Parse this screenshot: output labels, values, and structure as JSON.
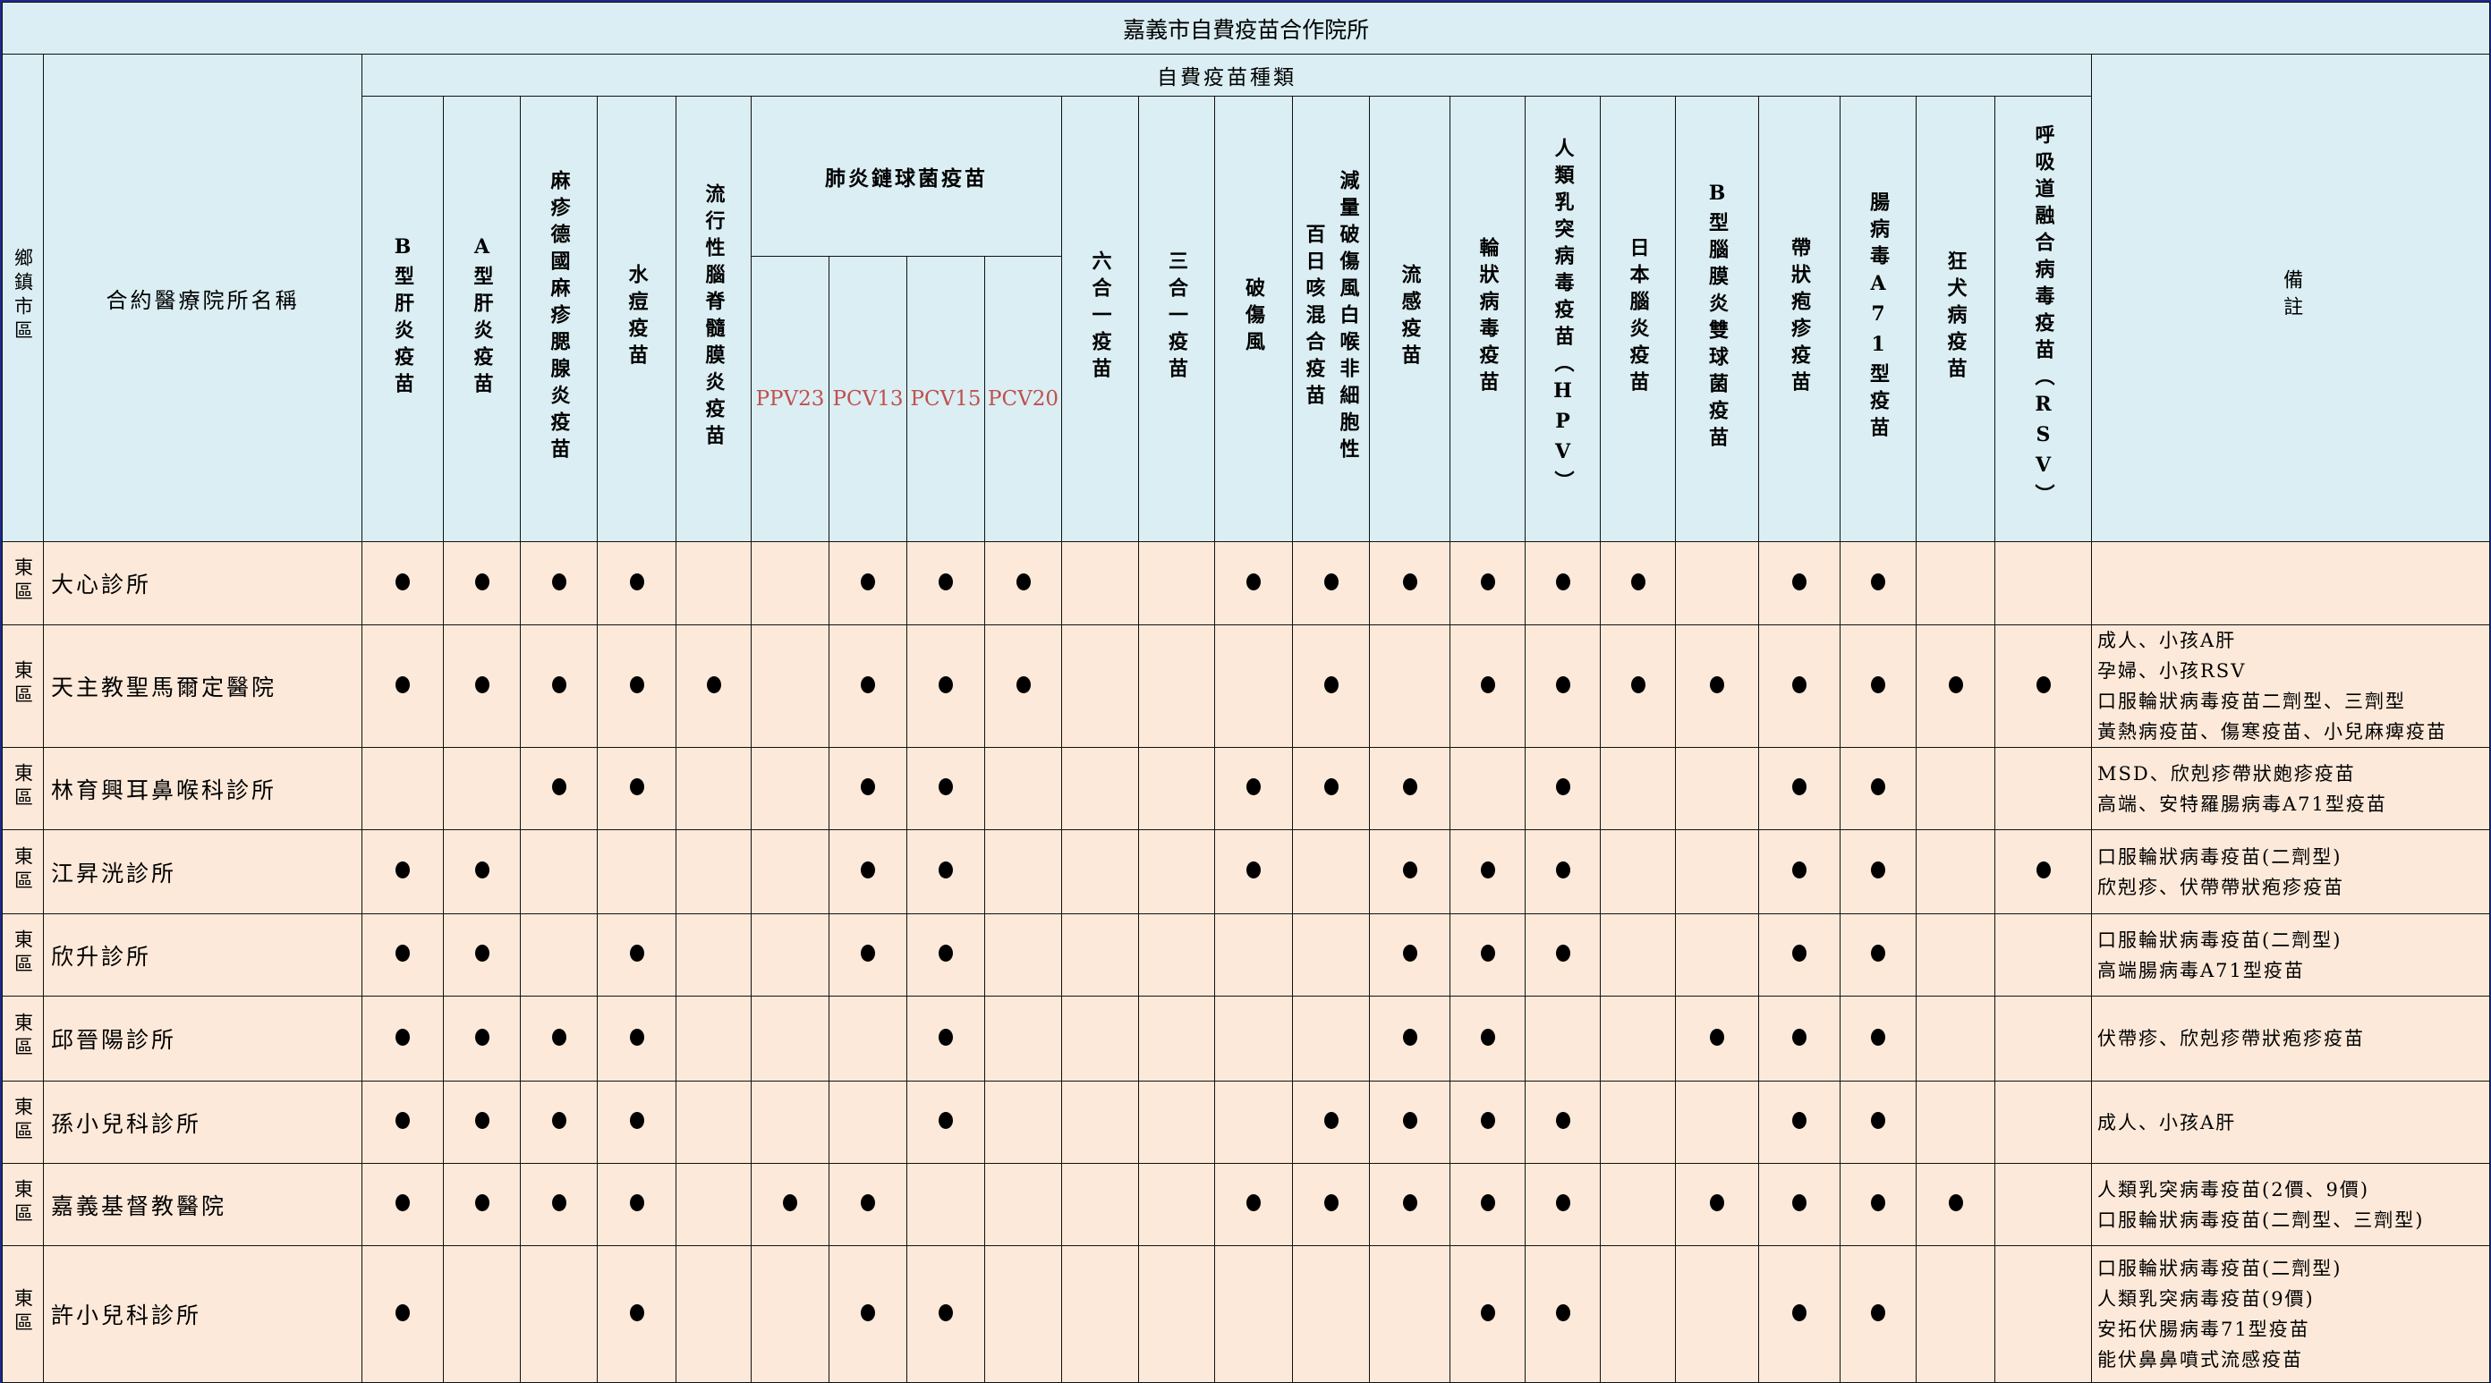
{
  "title": "嘉義市自費疫苗合作院所",
  "headers": {
    "district": "鄉鎮市區",
    "clinic_name": "合約醫療院所名稱",
    "vaccine_group": "自費疫苗種類",
    "pneumococcal_group": "肺炎鏈球菌疫苗",
    "remarks": "備註"
  },
  "columns": [
    {
      "lines": [
        "B型肝炎疫苗"
      ]
    },
    {
      "lines": [
        "A型肝炎疫苗"
      ]
    },
    {
      "lines": [
        "麻疹德國麻疹腮腺炎疫苗"
      ]
    },
    {
      "lines": [
        "水痘疫苗"
      ]
    },
    {
      "lines": [
        "流行性腦脊髓膜炎疫苗"
      ]
    },
    {
      "lines": [
        "PPV23"
      ],
      "group": "pneumococcal"
    },
    {
      "lines": [
        "PCV13"
      ],
      "group": "pneumococcal"
    },
    {
      "lines": [
        "PCV15"
      ],
      "group": "pneumococcal"
    },
    {
      "lines": [
        "PCV20"
      ],
      "group": "pneumococcal"
    },
    {
      "lines": [
        "六合一疫苗"
      ]
    },
    {
      "lines": [
        "三合一疫苗"
      ]
    },
    {
      "lines": [
        "破傷風"
      ]
    },
    {
      "lines": [
        "減量破傷風白喉非細胞性",
        "百日咳混合疫苗"
      ]
    },
    {
      "lines": [
        "流感疫苗"
      ]
    },
    {
      "lines": [
        "輪狀病毒疫苗"
      ]
    },
    {
      "lines": [
        "人類乳突病毒疫苗（HPV）"
      ]
    },
    {
      "lines": [
        "日本腦炎疫苗"
      ]
    },
    {
      "lines": [
        "B型腦膜炎雙球菌疫苗"
      ]
    },
    {
      "lines": [
        "帶狀疱疹疫苗"
      ]
    },
    {
      "lines": [
        "腸病毒A71型疫苗"
      ]
    },
    {
      "lines": [
        "狂犬病疫苗"
      ]
    },
    {
      "lines": [
        "呼吸道融合病毒疫苗（RSV）"
      ]
    }
  ],
  "available_mark": "●",
  "rows": [
    {
      "district": "東區",
      "name": "大心診所",
      "offers": [
        1,
        1,
        1,
        1,
        0,
        0,
        1,
        1,
        1,
        0,
        0,
        1,
        1,
        1,
        1,
        1,
        1,
        0,
        1,
        1,
        0,
        0
      ],
      "remarks": []
    },
    {
      "district": "東區",
      "name": "天主教聖馬爾定醫院",
      "offers": [
        1,
        1,
        1,
        1,
        1,
        0,
        1,
        1,
        1,
        0,
        0,
        0,
        1,
        0,
        1,
        1,
        1,
        1,
        1,
        1,
        1,
        1
      ],
      "remarks": [
        "成人、小孩A肝",
        "孕婦、小孩RSV",
        "口服輪狀病毒疫苗二劑型、三劑型",
        "黃熱病疫苗、傷寒疫苗、小兒麻痺疫苗"
      ]
    },
    {
      "district": "東區",
      "name": "林育興耳鼻喉科診所",
      "offers": [
        0,
        0,
        1,
        1,
        0,
        0,
        1,
        1,
        0,
        0,
        0,
        1,
        1,
        1,
        0,
        1,
        0,
        0,
        1,
        1,
        0,
        0
      ],
      "remarks": [
        "MSD、欣剋疹帶狀皰疹疫苗",
        "高端、安特羅腸病毒A71型疫苗"
      ]
    },
    {
      "district": "東區",
      "name": "江昇洸診所",
      "offers": [
        1,
        1,
        0,
        0,
        0,
        0,
        1,
        1,
        0,
        0,
        0,
        1,
        0,
        1,
        1,
        1,
        0,
        0,
        1,
        1,
        0,
        1
      ],
      "remarks": [
        "口服輪狀病毒疫苗(二劑型)",
        "欣剋疹、伏帶帶狀疱疹疫苗"
      ]
    },
    {
      "district": "東區",
      "name": "欣升診所",
      "offers": [
        1,
        1,
        0,
        1,
        0,
        0,
        1,
        1,
        0,
        0,
        0,
        0,
        0,
        1,
        1,
        1,
        0,
        0,
        1,
        1,
        0,
        0
      ],
      "remarks": [
        "口服輪狀病毒疫苗(二劑型)",
        "高端腸病毒A71型疫苗"
      ]
    },
    {
      "district": "東區",
      "name": "邱晉陽診所",
      "offers": [
        1,
        1,
        1,
        1,
        0,
        0,
        0,
        1,
        0,
        0,
        0,
        0,
        0,
        1,
        1,
        0,
        0,
        1,
        1,
        1,
        0,
        0
      ],
      "remarks": [
        "伏帶疹、欣剋疹帶狀疱疹疫苗"
      ]
    },
    {
      "district": "東區",
      "name": "孫小兒科診所",
      "offers": [
        1,
        1,
        1,
        1,
        0,
        0,
        0,
        1,
        0,
        0,
        0,
        0,
        1,
        1,
        1,
        1,
        0,
        0,
        1,
        1,
        0,
        0
      ],
      "remarks": [
        "成人、小孩A肝"
      ]
    },
    {
      "district": "東區",
      "name": "嘉義基督教醫院",
      "offers": [
        1,
        1,
        1,
        1,
        0,
        1,
        1,
        0,
        0,
        0,
        0,
        1,
        1,
        1,
        1,
        1,
        0,
        1,
        1,
        1,
        1,
        0
      ],
      "remarks": [
        "人類乳突病毒疫苗(2價、9價)",
        "口服輪狀病毒疫苗(二劑型、三劑型)"
      ]
    },
    {
      "district": "東區",
      "name": "許小兒科診所",
      "offers": [
        1,
        0,
        0,
        1,
        0,
        0,
        1,
        1,
        0,
        0,
        0,
        0,
        0,
        0,
        1,
        1,
        0,
        0,
        1,
        1,
        0,
        0
      ],
      "remarks": [
        "口服輪狀病毒疫苗(二劑型)",
        "人類乳突病毒疫苗(9價)",
        "安拓伏腸病毒71型疫苗",
        "能伏鼻鼻噴式流感疫苗"
      ]
    }
  ],
  "colors": {
    "header_bg": "#daeef3",
    "body_bg": "#fde9d9",
    "pcv_text": "#c0504d",
    "frame": "#1b2a8a"
  }
}
